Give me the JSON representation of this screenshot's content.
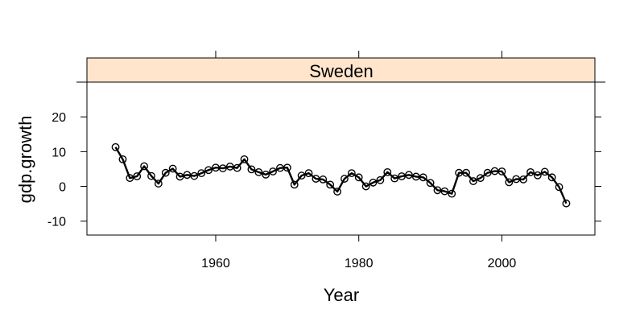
{
  "chart_data": {
    "type": "line",
    "panel_title": "Sweden",
    "xlabel": "Year",
    "ylabel": "gdp.growth",
    "xlim": [
      1942,
      2013
    ],
    "ylim": [
      -14,
      30
    ],
    "x_ticks": [
      1960,
      1980,
      2000
    ],
    "y_ticks": [
      -10,
      0,
      10,
      20
    ],
    "x_tick_labels": [
      "1960",
      "1980",
      "2000"
    ],
    "y_tick_labels": [
      "-10",
      "0",
      "10",
      "20"
    ],
    "grid": false,
    "marker": "open-circle",
    "colors": {
      "strip": "#ffe5cc",
      "line": "#000000",
      "frame": "#000000"
    },
    "series": [
      {
        "x": [
          1946,
          1947,
          1948,
          1949,
          1950,
          1951,
          1952,
          1953,
          1954,
          1955,
          1956,
          1957,
          1958,
          1959,
          1960,
          1961,
          1962,
          1963,
          1964,
          1965,
          1966,
          1967,
          1968,
          1969,
          1970,
          1971,
          1972,
          1973,
          1974,
          1975,
          1976,
          1977,
          1978,
          1979,
          1980,
          1981,
          1982,
          1983,
          1984,
          1985,
          1986,
          1987,
          1988,
          1989,
          1990,
          1991,
          1992,
          1993,
          1994,
          1995,
          1996,
          1997,
          1998,
          1999,
          2000,
          2001,
          2002,
          2003,
          2004,
          2005,
          2006,
          2007,
          2008,
          2009
        ],
        "y": [
          11.3,
          7.8,
          2.4,
          2.9,
          5.8,
          3.0,
          0.8,
          3.9,
          5.1,
          2.8,
          3.3,
          3.0,
          3.8,
          4.7,
          5.4,
          5.2,
          5.7,
          5.3,
          7.8,
          4.9,
          4.1,
          3.4,
          4.3,
          5.3,
          5.4,
          0.5,
          3.1,
          3.8,
          2.2,
          2.0,
          0.5,
          -1.5,
          2.2,
          3.8,
          2.6,
          0.0,
          1.1,
          1.8,
          4.1,
          2.3,
          2.9,
          3.3,
          2.8,
          2.6,
          1.0,
          -1.1,
          -1.4,
          -2.1,
          3.9,
          3.9,
          1.5,
          2.4,
          3.9,
          4.4,
          4.3,
          1.2,
          2.1,
          2.0,
          4.1,
          3.2,
          4.2,
          2.6,
          -0.2,
          -4.9
        ]
      }
    ]
  }
}
